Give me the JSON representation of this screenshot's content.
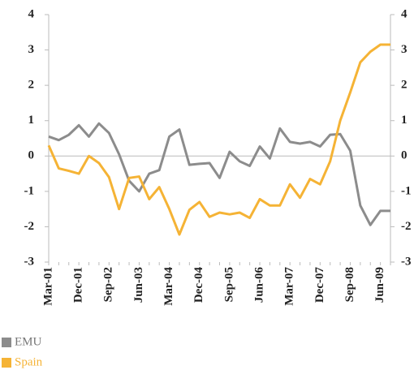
{
  "chart_data": {
    "type": "line",
    "categories": [
      "Mar-01",
      null,
      null,
      "Dec-01",
      null,
      null,
      "Sep-02",
      null,
      null,
      "Jun-03",
      null,
      null,
      "Mar-04",
      null,
      null,
      "Dec-04",
      null,
      null,
      "Sep-05",
      null,
      null,
      "Jun-06",
      null,
      null,
      "Mar-07",
      null,
      null,
      "Dec-07",
      null,
      null,
      "Sep-08",
      null,
      null,
      "Jun-09",
      null
    ],
    "series": [
      {
        "name": "EMU",
        "color": "#8c8c8c",
        "values": [
          0.55,
          0.45,
          0.6,
          0.87,
          0.55,
          0.92,
          0.65,
          0.05,
          -0.7,
          -1.0,
          -0.5,
          -0.4,
          0.55,
          0.75,
          -0.25,
          -0.22,
          -0.2,
          -0.62,
          0.12,
          -0.15,
          -0.28,
          0.27,
          -0.07,
          0.78,
          0.4,
          0.35,
          0.4,
          0.27,
          0.6,
          0.62,
          0.15,
          -1.4,
          -1.95,
          -1.55,
          -1.55
        ]
      },
      {
        "name": "Spain",
        "color": "#f5b335",
        "values": [
          0.3,
          -0.35,
          -0.42,
          -0.5,
          0.0,
          -0.2,
          -0.6,
          -1.5,
          -0.62,
          -0.58,
          -1.22,
          -0.88,
          -1.5,
          -2.22,
          -1.52,
          -1.3,
          -1.72,
          -1.6,
          -1.65,
          -1.6,
          -1.75,
          -1.22,
          -1.4,
          -1.4,
          -0.8,
          -1.18,
          -0.65,
          -0.8,
          -0.15,
          1.0,
          1.8,
          2.65,
          2.95,
          3.15,
          3.15
        ]
      }
    ],
    "ylim": [
      -3,
      4
    ],
    "yticks": [
      -3,
      -2,
      -1,
      0,
      1,
      2,
      3,
      4
    ],
    "grid": false
  }
}
